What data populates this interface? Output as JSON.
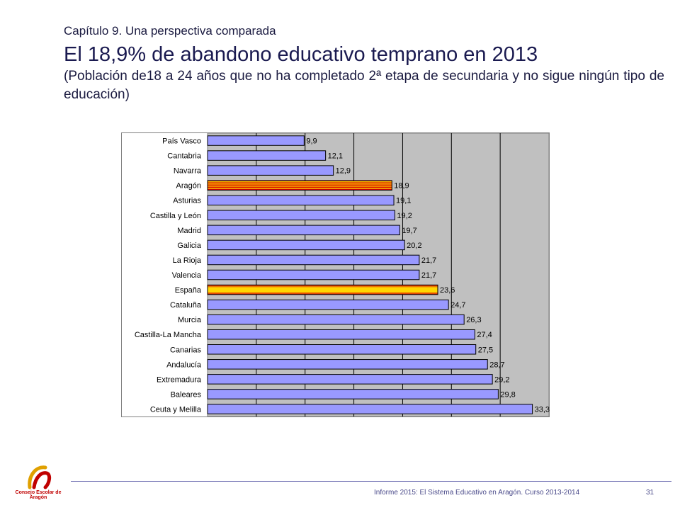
{
  "header": {
    "chapter": "Capítulo 9. Una perspectiva comparada",
    "title": "El 18,9% de abandono educativo temprano en 2013",
    "subtitle": "(Población de18 a 24 años que no ha completado 2ª etapa de secundaria y no sigue ningún tipo de educación)"
  },
  "chart_data": {
    "type": "bar",
    "orientation": "horizontal",
    "title": "",
    "xlabel": "",
    "ylabel": "",
    "xlim": [
      0,
      35
    ],
    "grid": true,
    "categories": [
      "País Vasco",
      "Cantabria",
      "Navarra",
      "Aragón",
      "Asturias",
      "Castilla y León",
      "Madrid",
      "Galicia",
      "La Rioja",
      "Valencia",
      "España",
      "Cataluña",
      "Murcia",
      "Castilla-La Mancha",
      "Canarias",
      "Andalucía",
      "Extremadura",
      "Baleares",
      "Ceuta y Melilla"
    ],
    "values": [
      9.9,
      12.1,
      12.9,
      18.9,
      19.1,
      19.2,
      19.7,
      20.2,
      21.7,
      21.7,
      23.6,
      24.7,
      26.3,
      27.4,
      27.5,
      28.7,
      29.2,
      29.8,
      33.3
    ],
    "value_labels": [
      "9,9",
      "12,1",
      "12,9",
      "18,9",
      "19,1",
      "19,2",
      "19,7",
      "20,2",
      "21,7",
      "21,7",
      "23,6",
      "24,7",
      "26,3",
      "27,4",
      "27,5",
      "28,7",
      "29,2",
      "29,8",
      "33,3"
    ],
    "highlight": {
      "Aragón": "aragon-stripes",
      "España": "spain-gradient"
    },
    "colors": {
      "bar": "#9999ff",
      "bar_stroke": "#000000",
      "plot_bg": "#c0c0c0",
      "label_bg": "#ffffff",
      "aragon_yellow": "#ffd700",
      "aragon_red": "#d40000",
      "spain_red": "#d40000",
      "spain_yellow": "#ffff00"
    }
  },
  "footer": {
    "text": "Informe 2015: El Sistema Educativo en Aragón. Curso 2013-2014",
    "page": "31",
    "logo_text": "Consejo Escolar de Aragón"
  }
}
